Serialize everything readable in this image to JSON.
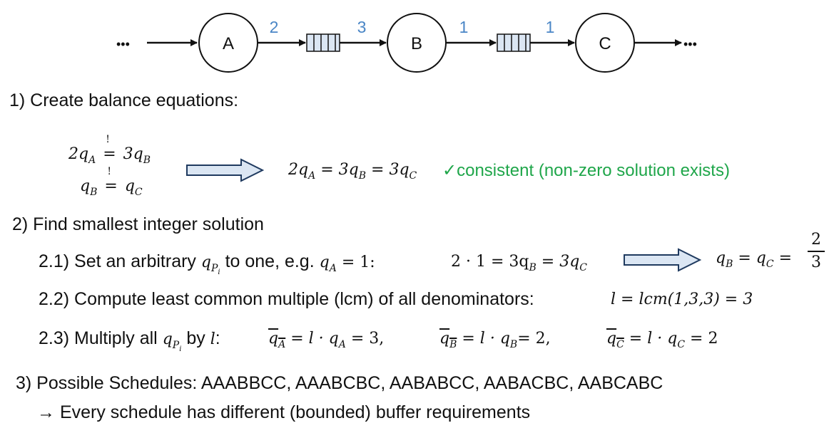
{
  "diagram": {
    "nodes": [
      "A",
      "B",
      "C"
    ],
    "ellipsis_left": "•••",
    "ellipsis_right": "•••",
    "rates": [
      "2",
      "3",
      "1",
      "1"
    ],
    "accent_color": "#4a86c6"
  },
  "step1": {
    "title": "1) Create balance equations:",
    "eq1": {
      "lhs": "2q",
      "lhs_sub": "A",
      "rhs": "3q",
      "rhs_sub": "B",
      "mark": "!"
    },
    "eq2": {
      "lhs": "q",
      "lhs_sub": "B",
      "rhs": "q",
      "rhs_sub": "C",
      "mark": "!"
    },
    "result": {
      "t1": "2q",
      "s1": "A",
      "t2": "= 3q",
      "s2": "B",
      "t3": "= 3q",
      "s3": "C"
    },
    "status": "✓consistent (non-zero solution exists)"
  },
  "step2": {
    "title": "2) Find smallest integer solution",
    "s21": {
      "text": "2.1) Set an arbitrary",
      "q": "q",
      "p": "P",
      "i": "i",
      "text2": "to one, e.g.",
      "eg_q": "q",
      "eg_sub": "A",
      "eg_rest": " = 1:",
      "eq": "2 · 1 = 3q",
      "eq_sub1": "B",
      "eq_mid": " = 3q",
      "eq_sub2": "C",
      "res_q1": "q",
      "res_s1": "B",
      "res_mid": " = q",
      "res_s2": "C",
      "res_eq": " =",
      "num": "2",
      "den": "3"
    },
    "s22": {
      "text": "2.2) Compute least common multiple (lcm) of all denominators:",
      "math": "l = lcm(1,3,3) = 3"
    },
    "s23": {
      "text": "2.3) Multiply all",
      "q": "q",
      "p": "P",
      "i": "i",
      "by": "by",
      "l": "l",
      "colon": ":",
      "a_q": "q",
      "a_s": "A",
      "a_rest": " = l · q",
      "a_s2": "A",
      "a_end": " = 3,",
      "b_q": "q",
      "b_s": "B",
      "b_rest": " = l · q",
      "b_s2": "B",
      "b_end": "= 2,",
      "c_q": "q",
      "c_s": "C",
      "c_rest": " = l · q",
      "c_s2": "C",
      "c_end": " = 2"
    }
  },
  "step3": {
    "title": "3) Possible Schedules: AAABBCC, AAABCBC, AABABCC, AABACBC, AABCABC",
    "note": "→ Every schedule has different (bounded) buffer requirements"
  }
}
